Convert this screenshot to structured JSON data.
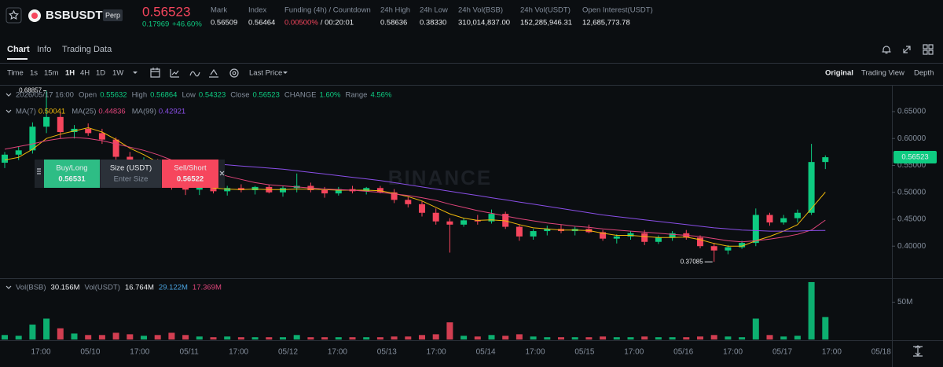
{
  "header": {
    "symbol": "BSBUSDT",
    "badge": "Perp",
    "price": "0.56523",
    "change": "0.17969",
    "change_pct": "+46.60%",
    "stats": [
      {
        "label": "Mark",
        "value": "0.56509"
      },
      {
        "label": "Index",
        "value": "0.56464"
      },
      {
        "label": "Funding (4h) / Countdown",
        "value": "0.00500%",
        "countdown": "/ 00:20:01"
      },
      {
        "label": "24h High",
        "value": "0.58636"
      },
      {
        "label": "24h Low",
        "value": "0.38330"
      },
      {
        "label": "24h Vol(BSB)",
        "value": "310,014,837.00"
      },
      {
        "label": "24h Vol(USDT)",
        "value": "152,285,946.31"
      },
      {
        "label": "Open Interest(USDT)",
        "value": "12,685,773.78"
      }
    ]
  },
  "tabs": [
    "Chart",
    "Info",
    "Trading Data"
  ],
  "toolbar": {
    "intervals": [
      "Time",
      "1s",
      "15m",
      "1H",
      "4H",
      "1D",
      "1W"
    ],
    "price_type": "Last Price",
    "views": [
      "Original",
      "Trading View",
      "Depth"
    ]
  },
  "order_panel": {
    "buy": "Buy/Long",
    "buy_price": "0.56531",
    "size": "Size (USDT)",
    "placeholder": "Enter Size",
    "sell": "Sell/Short",
    "sell_price": "0.56522"
  },
  "chart_data": {
    "type": "candlestick",
    "watermark": "BINANCE",
    "legend": {
      "time": "2026/05/17 16:00",
      "labels": [
        "Open",
        "High",
        "Low",
        "Close",
        "CHANGE",
        "Range"
      ],
      "change": "1.60%",
      "range": "4.56%"
    },
    "up_color": "#0ecb81",
    "down_color": "#f6465d",
    "ylim": [
      0.3434,
      0.6967
    ],
    "yticks": [
      {
        "value": 0.65,
        "label": "0.65000"
      },
      {
        "value": 0.6,
        "label": "0.60000"
      },
      {
        "value": 0.55,
        "label": "0.55000"
      },
      {
        "value": 0.5,
        "label": "0.50000"
      },
      {
        "value": 0.45,
        "label": "0.45000"
      },
      {
        "value": 0.4,
        "label": "0.40000"
      }
    ],
    "xtick_labels": [
      "17:00",
      "05/10",
      "17:00",
      "05/11",
      "17:00",
      "05/12",
      "17:00",
      "05/13",
      "17:00",
      "05/14",
      "17:00",
      "05/15",
      "17:00",
      "05/16",
      "17:00",
      "05/17",
      "17:00",
      "05/18"
    ],
    "open": [
      0.555,
      0.57,
      0.578,
      0.622,
      0.64,
      0.612,
      0.618,
      0.61,
      0.598,
      0.566,
      0.552,
      0.558,
      0.536,
      0.512,
      0.505,
      0.51,
      0.502,
      0.508,
      0.504,
      0.51,
      0.5,
      0.508,
      0.512,
      0.504,
      0.498,
      0.506,
      0.502,
      0.508,
      0.5,
      0.486,
      0.478,
      0.462,
      0.446,
      0.44,
      0.448,
      0.446,
      0.46,
      0.436,
      0.418,
      0.428,
      0.432,
      0.428,
      0.432,
      0.426,
      0.414,
      0.418,
      0.424,
      0.408,
      0.416,
      0.424,
      0.416,
      0.4,
      0.392,
      0.398,
      0.406,
      0.458,
      0.444,
      0.452,
      0.462,
      0.55632
    ],
    "high": [
      0.575,
      0.585,
      0.63,
      0.68857,
      0.648,
      0.625,
      0.628,
      0.618,
      0.602,
      0.575,
      0.565,
      0.562,
      0.54,
      0.52,
      0.515,
      0.518,
      0.512,
      0.515,
      0.512,
      0.514,
      0.512,
      0.535,
      0.518,
      0.51,
      0.51,
      0.512,
      0.51,
      0.512,
      0.506,
      0.492,
      0.484,
      0.47,
      0.452,
      0.452,
      0.458,
      0.468,
      0.464,
      0.44,
      0.432,
      0.438,
      0.44,
      0.436,
      0.44,
      0.43,
      0.422,
      0.428,
      0.43,
      0.42,
      0.428,
      0.43,
      0.42,
      0.406,
      0.402,
      0.41,
      0.47,
      0.462,
      0.458,
      0.468,
      0.59,
      0.56864
    ],
    "low": [
      0.545,
      0.56,
      0.572,
      0.61,
      0.6,
      0.6,
      0.605,
      0.59,
      0.56,
      0.548,
      0.54,
      0.53,
      0.505,
      0.495,
      0.495,
      0.498,
      0.494,
      0.5,
      0.496,
      0.498,
      0.492,
      0.5,
      0.5,
      0.49,
      0.494,
      0.498,
      0.496,
      0.498,
      0.48,
      0.472,
      0.455,
      0.44,
      0.388,
      0.436,
      0.44,
      0.442,
      0.432,
      0.41,
      0.412,
      0.42,
      0.424,
      0.42,
      0.424,
      0.41,
      0.405,
      0.412,
      0.402,
      0.404,
      0.41,
      0.412,
      0.396,
      0.37085,
      0.385,
      0.395,
      0.4,
      0.438,
      0.44,
      0.444,
      0.458,
      0.54323
    ],
    "close": [
      0.57,
      0.578,
      0.622,
      0.64,
      0.612,
      0.618,
      0.61,
      0.598,
      0.566,
      0.552,
      0.558,
      0.536,
      0.512,
      0.505,
      0.51,
      0.502,
      0.508,
      0.504,
      0.51,
      0.5,
      0.508,
      0.512,
      0.504,
      0.498,
      0.506,
      0.502,
      0.508,
      0.5,
      0.486,
      0.478,
      0.462,
      0.446,
      0.44,
      0.448,
      0.446,
      0.46,
      0.436,
      0.418,
      0.428,
      0.432,
      0.428,
      0.432,
      0.426,
      0.414,
      0.418,
      0.424,
      0.408,
      0.416,
      0.424,
      0.416,
      0.4,
      0.392,
      0.398,
      0.406,
      0.458,
      0.444,
      0.452,
      0.462,
      0.55632,
      0.56523
    ],
    "series": [
      {
        "name": "MA(7)",
        "color": "#f0b90b",
        "values": [
          0.56,
          0.565,
          0.58,
          0.6,
          0.608,
          0.614,
          0.62,
          0.612,
          0.598,
          0.582,
          0.57,
          0.556,
          0.54,
          0.526,
          0.515,
          0.508,
          0.506,
          0.505,
          0.506,
          0.505,
          0.505,
          0.506,
          0.506,
          0.505,
          0.504,
          0.504,
          0.504,
          0.503,
          0.498,
          0.492,
          0.484,
          0.472,
          0.46,
          0.452,
          0.448,
          0.449,
          0.447,
          0.44,
          0.434,
          0.432,
          0.43,
          0.43,
          0.429,
          0.424,
          0.42,
          0.42,
          0.418,
          0.416,
          0.416,
          0.417,
          0.412,
          0.405,
          0.4,
          0.4,
          0.41,
          0.418,
          0.428,
          0.44,
          0.47,
          0.50041
        ]
      },
      {
        "name": "MA(25)",
        "color": "#e0457b",
        "values": [
          0.58,
          0.585,
          0.59,
          0.596,
          0.6,
          0.602,
          0.6,
          0.596,
          0.59,
          0.584,
          0.578,
          0.57,
          0.56,
          0.552,
          0.545,
          0.538,
          0.53,
          0.524,
          0.518,
          0.514,
          0.512,
          0.51,
          0.508,
          0.506,
          0.505,
          0.504,
          0.502,
          0.5,
          0.497,
          0.494,
          0.49,
          0.485,
          0.478,
          0.472,
          0.466,
          0.461,
          0.456,
          0.451,
          0.447,
          0.443,
          0.44,
          0.437,
          0.435,
          0.432,
          0.43,
          0.428,
          0.426,
          0.424,
          0.422,
          0.42,
          0.418,
          0.414,
          0.41,
          0.408,
          0.41,
          0.413,
          0.417,
          0.422,
          0.43,
          0.44836
        ]
      },
      {
        "name": "MA(99)",
        "color": "#8a4fe8",
        "values": [
          null,
          null,
          null,
          null,
          null,
          null,
          null,
          null,
          null,
          null,
          null,
          null,
          null,
          null,
          0.555,
          0.553,
          0.551,
          0.549,
          0.547,
          0.545,
          0.543,
          0.54,
          0.537,
          0.534,
          0.531,
          0.528,
          0.525,
          0.522,
          0.518,
          0.514,
          0.51,
          0.506,
          0.502,
          0.498,
          0.494,
          0.49,
          0.486,
          0.482,
          0.478,
          0.474,
          0.47,
          0.466,
          0.462,
          0.458,
          0.455,
          0.452,
          0.449,
          0.446,
          0.443,
          0.44,
          0.437,
          0.434,
          0.432,
          0.43,
          0.429,
          0.428,
          0.428,
          0.428,
          0.429,
          0.42921
        ]
      }
    ],
    "volume": {
      "ylim": [
        0,
        78000000
      ],
      "yticks": [
        {
          "value": 50000000,
          "label": "50M"
        }
      ],
      "values": [
        6000000,
        5000000,
        20000000,
        28000000,
        15000000,
        8000000,
        6000000,
        6000000,
        9000000,
        7000000,
        5000000,
        6000000,
        9000000,
        6000000,
        4000000,
        3000000,
        4000000,
        3000000,
        3000000,
        3000000,
        3000000,
        6000000,
        3000000,
        3000000,
        3000000,
        3000000,
        3000000,
        3000000,
        4000000,
        4000000,
        6000000,
        7000000,
        23000000,
        5000000,
        4000000,
        6000000,
        5000000,
        7000000,
        4000000,
        3000000,
        3000000,
        3000000,
        3000000,
        4000000,
        3000000,
        3000000,
        4000000,
        3000000,
        3000000,
        3000000,
        4000000,
        6000000,
        4000000,
        3000000,
        28000000,
        6000000,
        4000000,
        5000000,
        77000000,
        30156000
      ],
      "legend": [
        {
          "name": "Vol(BSB)",
          "value": "30.156M",
          "color": "#eaecef"
        },
        {
          "name": "Vol(USDT)",
          "value": "16.764M",
          "color": "#eaecef"
        },
        {
          "value": "29.122M",
          "color": "#4aa3df"
        },
        {
          "value": "17.369M",
          "color": "#e0457b"
        }
      ]
    }
  }
}
